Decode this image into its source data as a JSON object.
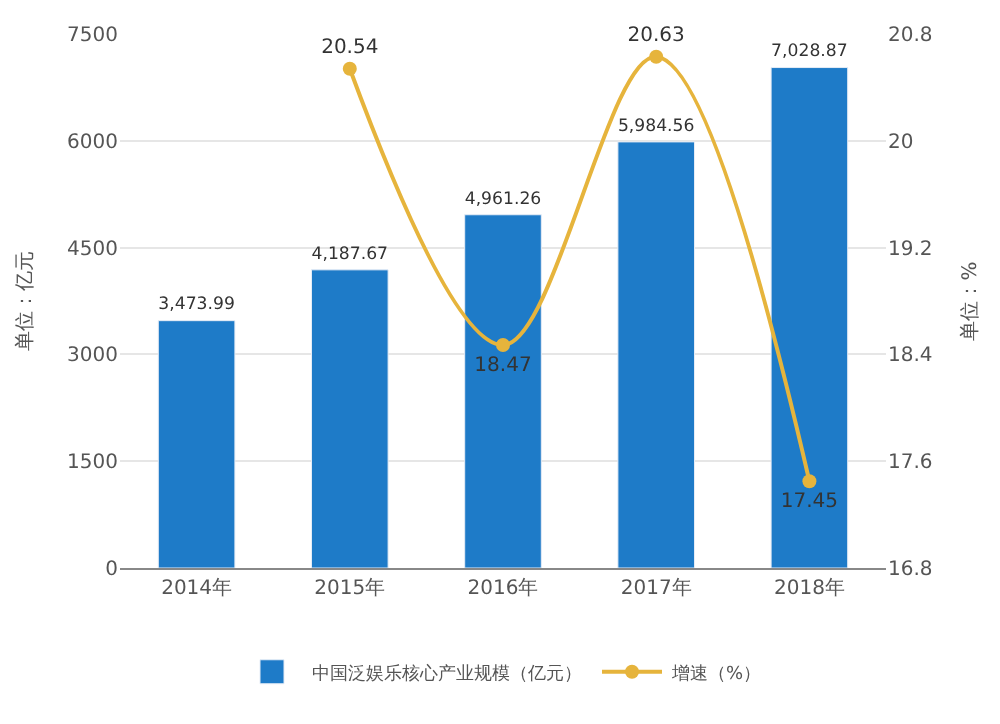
{
  "chart_data": {
    "type": "bar",
    "categories": [
      "2014年",
      "2015年",
      "2016年",
      "2017年",
      "2018年"
    ],
    "ylabel": "单位：亿元",
    "y2label": "单位：%",
    "series": [
      {
        "name": "中国泛娱乐核心产业规模（亿元）",
        "color": "#1e7bc8",
        "values": [
          3473.99,
          4187.67,
          4961.26,
          5984.56,
          7028.87
        ],
        "value_labels": [
          "3,473.99",
          "4,187.67",
          "4,961.26",
          "5,984.56",
          "7,028.87"
        ]
      },
      {
        "name": "增速（%）",
        "type": "line",
        "axis": "y2",
        "color": "#e6b43c",
        "values": [
          null,
          20.54,
          18.47,
          20.63,
          17.45
        ],
        "value_labels": [
          null,
          "20.54",
          "18.47",
          "20.63",
          "17.45"
        ]
      }
    ],
    "ylim": [
      0,
      7500
    ],
    "yticks": [
      0,
      1500,
      3000,
      4500,
      6000,
      7500
    ],
    "y2lim": [
      16.8,
      20.8
    ],
    "y2ticks": [
      16.8,
      17.6,
      18.4,
      19.2,
      20,
      20.8
    ],
    "grid": "y",
    "legend": "bottom",
    "marker": "circle"
  }
}
